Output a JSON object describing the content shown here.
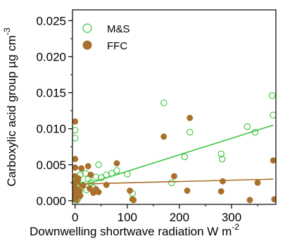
{
  "chart_data": {
    "type": "scatter",
    "xlabel": "Downwelling shortwave radiation W m",
    "xlabel_sup": "-2",
    "ylabel": "Carboxylic acid group µg cm",
    "ylabel_sup": "-3",
    "xlim": [
      -5,
      385
    ],
    "ylim": [
      -0.0005,
      0.0265
    ],
    "x_ticks": [
      0,
      100,
      200,
      300
    ],
    "x_tick_labels": [
      "0",
      "100",
      "200",
      "300"
    ],
    "y_ticks": [
      0.0,
      0.005,
      0.01,
      0.015,
      0.02,
      0.025
    ],
    "y_tick_labels": [
      "0.000",
      "0.005",
      "0.010",
      "0.015",
      "0.020",
      "0.025"
    ],
    "grid": false,
    "legend_position": "top-left",
    "series": [
      {
        "name": "M&S",
        "marker": "open-circle",
        "color": "#3cc43c",
        "fit_line": [
          [
            0,
            0.0018
          ],
          [
            380,
            0.0105
          ]
        ],
        "points": [
          [
            0,
            0.0087
          ],
          [
            0,
            0.0098
          ],
          [
            0,
            0.0026
          ],
          [
            0,
            0.0012
          ],
          [
            0,
            0.0006
          ],
          [
            0,
            0.0002
          ],
          [
            1,
            0.0003
          ],
          [
            1,
            0.0009
          ],
          [
            2,
            0.0005
          ],
          [
            2,
            0.0015
          ],
          [
            3,
            0.002
          ],
          [
            4,
            0.0001
          ],
          [
            5,
            0.0028
          ],
          [
            6,
            0.0004
          ],
          [
            8,
            0.0013
          ],
          [
            10,
            0.0036
          ],
          [
            12,
            0.0019
          ],
          [
            15,
            0.0022
          ],
          [
            20,
            0.0038
          ],
          [
            22,
            0.0015
          ],
          [
            25,
            0.003
          ],
          [
            30,
            0.0025
          ],
          [
            35,
            0.0018
          ],
          [
            40,
            0.0033
          ],
          [
            45,
            0.005
          ],
          [
            50,
            0.0032
          ],
          [
            60,
            0.0036
          ],
          [
            70,
            0.0038
          ],
          [
            80,
            0.0042
          ],
          [
            100,
            0.0037
          ],
          [
            110,
            0.001
          ],
          [
            170,
            0.0136
          ],
          [
            185,
            0.0025
          ],
          [
            210,
            0.0061
          ],
          [
            220,
            0.0095
          ],
          [
            280,
            0.0065
          ],
          [
            282,
            0.0058
          ],
          [
            330,
            0.0103
          ],
          [
            345,
            0.0095
          ],
          [
            378,
            0.0146
          ],
          [
            380,
            0.0119
          ]
        ]
      },
      {
        "name": "FFC",
        "marker": "filled-circle",
        "color": "#a8702a",
        "fit_line": [
          [
            0,
            0.0023
          ],
          [
            380,
            0.003
          ]
        ],
        "points": [
          [
            0,
            0.011
          ],
          [
            0,
            0.0058
          ],
          [
            0,
            0.0046
          ],
          [
            0,
            0.0034
          ],
          [
            0,
            0.0025
          ],
          [
            0,
            0.0018
          ],
          [
            1,
            0.0012
          ],
          [
            1,
            0.0008
          ],
          [
            2,
            0.0004
          ],
          [
            2,
            0.0001
          ],
          [
            3,
            0.0016
          ],
          [
            4,
            0.0026
          ],
          [
            5,
            0.0009
          ],
          [
            6,
            0.0031
          ],
          [
            8,
            0.0014
          ],
          [
            10,
            0.0007
          ],
          [
            12,
            0.0045
          ],
          [
            15,
            0.0021
          ],
          [
            25,
            0.0048
          ],
          [
            28,
            0.0017
          ],
          [
            30,
            0.0036
          ],
          [
            35,
            0.0011
          ],
          [
            40,
            0.0016
          ],
          [
            45,
            0.0012
          ],
          [
            60,
            0.0022
          ],
          [
            80,
            0.0052
          ],
          [
            105,
            0.0014
          ],
          [
            110,
            0.0002
          ],
          [
            112,
            0.0001
          ],
          [
            170,
            0.0089
          ],
          [
            190,
            0.0034
          ],
          [
            215,
            0.0014
          ],
          [
            220,
            0.0115
          ],
          [
            280,
            0.0013
          ],
          [
            283,
            0.0027
          ],
          [
            335,
            0.0001
          ],
          [
            350,
            0.0025
          ],
          [
            380,
            0.0056
          ],
          [
            382,
            0.0002
          ]
        ]
      }
    ]
  }
}
